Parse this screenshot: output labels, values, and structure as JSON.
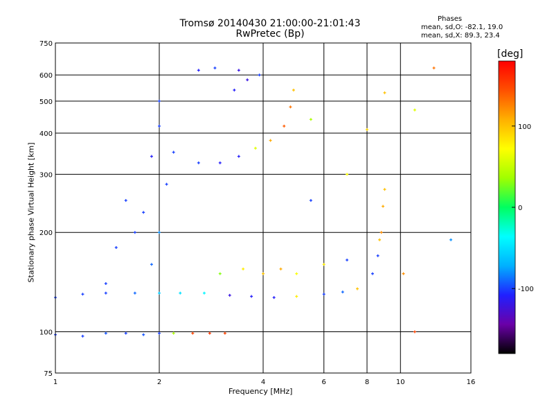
{
  "chart_data": {
    "type": "scatter",
    "title": "Tromsø 20140430 21:00:00-21:01:43",
    "subtitle": "RwPretec (Bp)",
    "xlabel": "Frequency [MHz]",
    "ylabel": "Stationary phase Virtual Height [km]",
    "x_scale": "log",
    "y_scale": "log",
    "xlim": [
      1,
      16
    ],
    "ylim": [
      75,
      750
    ],
    "x_ticks": [
      "1",
      "2",
      "4",
      "6",
      "8",
      "10",
      "16"
    ],
    "y_ticks": [
      "75",
      "100",
      "200",
      "300",
      "400",
      "500",
      "600",
      "750"
    ],
    "grid": true,
    "phase_stats": {
      "heading": "Phases",
      "o_mode": "mean, sd,O: -82.1, 19.0",
      "x_mode": "mean, sd,X:  89.3, 23.4"
    },
    "colorbar": {
      "unit_label": "[deg]",
      "ticks": [
        "100",
        "0",
        "-100"
      ],
      "tick_values": [
        100,
        0,
        -100
      ],
      "range": [
        -180,
        180
      ],
      "colors": [
        "#000000",
        "#6a00a8",
        "#2020ff",
        "#00b0ff",
        "#00ffff",
        "#00ff60",
        "#a0ff00",
        "#ffff00",
        "#ffb000",
        "#ff5000",
        "#ff0000"
      ]
    },
    "series": [
      {
        "points": [
          [
            1.0,
            98,
            -100
          ],
          [
            1.2,
            97,
            -100
          ],
          [
            1.4,
            99,
            -95
          ],
          [
            1.6,
            99,
            -100
          ],
          [
            1.8,
            98,
            -95
          ],
          [
            2.0,
            99,
            -100
          ],
          [
            2.2,
            99,
            40
          ],
          [
            2.5,
            99,
            150
          ],
          [
            2.8,
            99,
            155
          ],
          [
            3.1,
            99,
            150
          ]
        ]
      },
      {
        "points": [
          [
            1.0,
            127,
            -100
          ],
          [
            1.2,
            130,
            -100
          ],
          [
            1.4,
            131,
            -100
          ],
          [
            1.7,
            131,
            -90
          ],
          [
            2.0,
            131,
            -60
          ],
          [
            2.3,
            131,
            -50
          ],
          [
            2.7,
            131,
            -40
          ],
          [
            3.2,
            129,
            -120
          ],
          [
            3.7,
            128,
            -110
          ],
          [
            4.3,
            127,
            -110
          ],
          [
            5.0,
            128,
            80
          ],
          [
            6.0,
            130,
            -100
          ],
          [
            6.8,
            132,
            -90
          ],
          [
            7.5,
            135,
            100
          ]
        ]
      },
      {
        "points": [
          [
            1.4,
            140,
            -100
          ],
          [
            1.5,
            180,
            -100
          ],
          [
            1.6,
            250,
            -100
          ],
          [
            1.8,
            230,
            -100
          ],
          [
            2.0,
            200,
            -80
          ],
          [
            1.9,
            160,
            -90
          ],
          [
            1.7,
            200,
            -100
          ],
          [
            2.1,
            280,
            -100
          ]
        ]
      },
      {
        "points": [
          [
            1.9,
            340,
            -110
          ],
          [
            2.0,
            420,
            -100
          ],
          [
            2.0,
            500,
            -100
          ],
          [
            2.2,
            350,
            -100
          ],
          [
            2.6,
            325,
            -100
          ],
          [
            3.0,
            325,
            -110
          ],
          [
            3.4,
            340,
            -110
          ],
          [
            3.8,
            360,
            60
          ],
          [
            4.2,
            380,
            110
          ],
          [
            4.6,
            420,
            140
          ],
          [
            4.8,
            480,
            130
          ],
          [
            4.9,
            540,
            100
          ]
        ]
      },
      {
        "points": [
          [
            2.6,
            620,
            -110
          ],
          [
            2.9,
            630,
            -100
          ],
          [
            3.4,
            620,
            -120
          ],
          [
            3.6,
            580,
            -120
          ],
          [
            3.9,
            600,
            -100
          ],
          [
            3.3,
            540,
            -110
          ]
        ]
      },
      {
        "points": [
          [
            3.0,
            150,
            30
          ],
          [
            3.5,
            155,
            80
          ],
          [
            4.0,
            150,
            100
          ],
          [
            4.5,
            155,
            110
          ],
          [
            5.0,
            150,
            70
          ],
          [
            6.0,
            160,
            80
          ],
          [
            7.0,
            165,
            -100
          ]
        ]
      },
      {
        "points": [
          [
            8.3,
            150,
            -100
          ],
          [
            8.6,
            170,
            -100
          ],
          [
            8.8,
            200,
            120
          ],
          [
            8.9,
            240,
            110
          ],
          [
            9.0,
            270,
            100
          ],
          [
            8.7,
            190,
            100
          ]
        ]
      },
      {
        "points": [
          [
            5.5,
            440,
            40
          ],
          [
            8.0,
            410,
            90
          ],
          [
            9.0,
            530,
            100
          ],
          [
            11.0,
            470,
            60
          ],
          [
            12.5,
            630,
            130
          ],
          [
            14.0,
            190,
            -80
          ],
          [
            11.0,
            100,
            150
          ],
          [
            10.2,
            150,
            120
          ],
          [
            7.0,
            300,
            70
          ],
          [
            5.5,
            250,
            -100
          ]
        ]
      }
    ]
  }
}
